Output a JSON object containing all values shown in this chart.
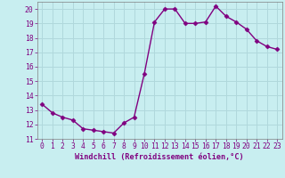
{
  "x": [
    0,
    1,
    2,
    3,
    4,
    5,
    6,
    7,
    8,
    9,
    10,
    11,
    12,
    13,
    14,
    15,
    16,
    17,
    18,
    19,
    20,
    21,
    22,
    23
  ],
  "y": [
    13.4,
    12.8,
    12.5,
    12.3,
    11.7,
    11.6,
    11.5,
    11.4,
    12.1,
    12.5,
    15.5,
    19.1,
    20.0,
    20.0,
    19.0,
    19.0,
    19.1,
    20.2,
    19.5,
    19.1,
    18.6,
    17.8,
    17.4,
    17.2
  ],
  "line_color": "#800080",
  "marker": "D",
  "markersize": 2.5,
  "linewidth": 1.0,
  "bg_color": "#c8eef0",
  "grid_color": "#b0d8dc",
  "xlabel": "Windchill (Refroidissement éolien,°C)",
  "xlabel_color": "#800080",
  "tick_color": "#800080",
  "ylim": [
    11,
    20.5
  ],
  "xlim": [
    -0.5,
    23.5
  ],
  "yticks": [
    11,
    12,
    13,
    14,
    15,
    16,
    17,
    18,
    19,
    20
  ],
  "xticks": [
    0,
    1,
    2,
    3,
    4,
    5,
    6,
    7,
    8,
    9,
    10,
    11,
    12,
    13,
    14,
    15,
    16,
    17,
    18,
    19,
    20,
    21,
    22,
    23
  ],
  "font_size": 5.8
}
